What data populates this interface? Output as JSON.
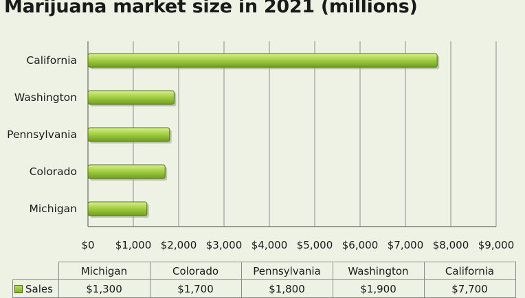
{
  "title": "Marijuana market size in 2021 (millions)",
  "colors": {
    "bar_light": "#c4e36a",
    "bar_dark": "#6f9e22",
    "grid": "#8a8a8a"
  },
  "chart_data": {
    "type": "bar",
    "orientation": "horizontal",
    "title": "Marijuana market size in 2021 (millions)",
    "categories": [
      "California",
      "Washington",
      "Pennsylvania",
      "Colorado",
      "Michigan"
    ],
    "series": [
      {
        "name": "Sales",
        "values": [
          7700,
          1900,
          1800,
          1700,
          1300
        ]
      }
    ],
    "xlim": [
      0,
      9000
    ],
    "x_tick_values": [
      0,
      1000,
      2000,
      3000,
      4000,
      5000,
      6000,
      7000,
      8000,
      9000
    ],
    "x_tick_labels": [
      "$0",
      "$1,000",
      "$2,000",
      "$3,000",
      "$4,000",
      "$5,000",
      "$6,000",
      "$7,000",
      "$8,000",
      "$9,000"
    ],
    "grid": true,
    "legend": "data table"
  },
  "table": {
    "headers": [
      "Michigan",
      "Colorado",
      "Pennsylvania",
      "Washington",
      "California"
    ],
    "row_label": "Sales",
    "row_values": [
      "$1,300",
      "$1,700",
      "$1,800",
      "$1,900",
      "$7,700"
    ]
  }
}
